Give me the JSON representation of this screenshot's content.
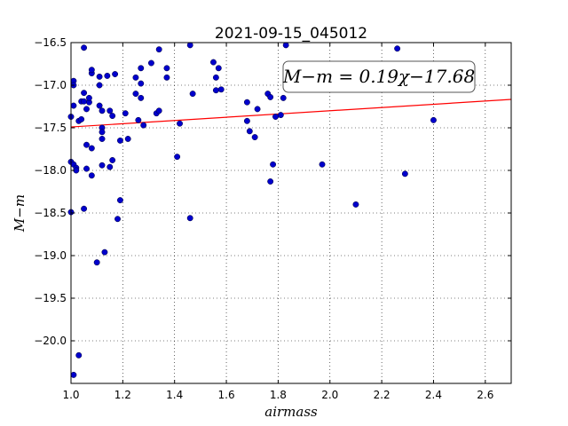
{
  "chart_data": {
    "type": "scatter",
    "title": "2021-09-15_045012",
    "xlabel": "airmass",
    "ylabel": "M−m",
    "xlim": [
      1.0,
      2.7
    ],
    "ylim": [
      -20.5,
      -16.5
    ],
    "y_inverted": true,
    "grid": true,
    "grid_style": "dotted",
    "xticks": [
      1.0,
      1.2,
      1.4,
      1.6,
      1.8,
      2.0,
      2.2,
      2.4,
      2.6
    ],
    "xtick_labels": [
      "1.0",
      "1.2",
      "1.4",
      "1.6",
      "1.8",
      "2.0",
      "2.2",
      "2.4",
      "2.6"
    ],
    "yticks": [
      -16.5,
      -17.0,
      -17.5,
      -18.0,
      -18.5,
      -19.0,
      -19.5,
      -20.0
    ],
    "ytick_labels": [
      "−16.5",
      "−17.0",
      "−17.5",
      "−18.0",
      "−18.5",
      "−19.0",
      "−19.5",
      "−20.0"
    ],
    "annotation": "M−m = 0.19χ−17.68",
    "annotation_placement": "top-right",
    "fit_line": {
      "slope": 0.19,
      "intercept": -17.68,
      "color": "#ff0000"
    },
    "point_color": "#0000cc",
    "series": [
      {
        "points": [
          [
            1.0,
            -17.37
          ],
          [
            1.0,
            -17.9
          ],
          [
            1.0,
            -18.49
          ],
          [
            1.01,
            -17.93
          ],
          [
            1.01,
            -16.95
          ],
          [
            1.01,
            -17.0
          ],
          [
            1.01,
            -17.24
          ],
          [
            1.01,
            -20.4
          ],
          [
            1.02,
            -17.97
          ],
          [
            1.02,
            -18.0
          ],
          [
            1.03,
            -20.17
          ],
          [
            1.03,
            -17.42
          ],
          [
            1.04,
            -17.4
          ],
          [
            1.04,
            -17.19
          ],
          [
            1.05,
            -17.09
          ],
          [
            1.05,
            -16.56
          ],
          [
            1.05,
            -17.19
          ],
          [
            1.05,
            -18.45
          ],
          [
            1.06,
            -17.98
          ],
          [
            1.06,
            -17.28
          ],
          [
            1.06,
            -17.7
          ],
          [
            1.07,
            -17.2
          ],
          [
            1.07,
            -17.15
          ],
          [
            1.08,
            -16.86
          ],
          [
            1.08,
            -16.82
          ],
          [
            1.08,
            -17.74
          ],
          [
            1.08,
            -18.06
          ],
          [
            1.1,
            -19.08
          ],
          [
            1.11,
            -17.0
          ],
          [
            1.11,
            -17.24
          ],
          [
            1.11,
            -16.9
          ],
          [
            1.12,
            -17.5
          ],
          [
            1.12,
            -17.55
          ],
          [
            1.12,
            -17.63
          ],
          [
            1.12,
            -17.94
          ],
          [
            1.12,
            -17.3
          ],
          [
            1.13,
            -18.96
          ],
          [
            1.14,
            -16.89
          ],
          [
            1.15,
            -17.96
          ],
          [
            1.15,
            -17.3
          ],
          [
            1.16,
            -17.36
          ],
          [
            1.16,
            -17.88
          ],
          [
            1.17,
            -16.87
          ],
          [
            1.18,
            -18.57
          ],
          [
            1.19,
            -17.65
          ],
          [
            1.19,
            -18.35
          ],
          [
            1.21,
            -17.33
          ],
          [
            1.22,
            -17.63
          ],
          [
            1.25,
            -16.91
          ],
          [
            1.25,
            -17.1
          ],
          [
            1.26,
            -17.41
          ],
          [
            1.27,
            -16.8
          ],
          [
            1.27,
            -17.15
          ],
          [
            1.27,
            -16.98
          ],
          [
            1.28,
            -17.47
          ],
          [
            1.31,
            -16.74
          ],
          [
            1.33,
            -17.33
          ],
          [
            1.34,
            -16.58
          ],
          [
            1.34,
            -17.3
          ],
          [
            1.37,
            -16.8
          ],
          [
            1.37,
            -16.91
          ],
          [
            1.41,
            -17.84
          ],
          [
            1.42,
            -17.45
          ],
          [
            1.46,
            -16.53
          ],
          [
            1.46,
            -18.56
          ],
          [
            1.47,
            -17.1
          ],
          [
            1.55,
            -16.73
          ],
          [
            1.56,
            -17.06
          ],
          [
            1.56,
            -16.91
          ],
          [
            1.57,
            -16.8
          ],
          [
            1.58,
            -17.05
          ],
          [
            1.68,
            -17.2
          ],
          [
            1.68,
            -17.42
          ],
          [
            1.69,
            -17.54
          ],
          [
            1.71,
            -17.61
          ],
          [
            1.72,
            -17.28
          ],
          [
            1.76,
            -17.1
          ],
          [
            1.77,
            -17.14
          ],
          [
            1.77,
            -18.13
          ],
          [
            1.78,
            -17.93
          ],
          [
            1.79,
            -17.37
          ],
          [
            1.81,
            -17.35
          ],
          [
            1.82,
            -17.15
          ],
          [
            1.83,
            -16.53
          ],
          [
            1.97,
            -17.93
          ],
          [
            2.1,
            -18.4
          ],
          [
            2.26,
            -16.57
          ],
          [
            2.29,
            -18.04
          ],
          [
            2.4,
            -17.41
          ]
        ]
      }
    ]
  }
}
